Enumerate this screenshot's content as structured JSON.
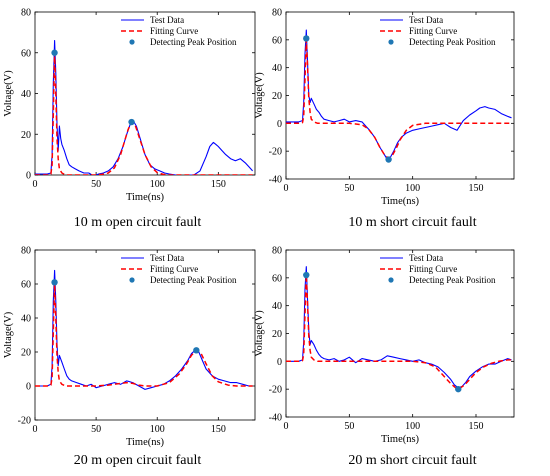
{
  "chart_data": [
    {
      "type": "line",
      "caption": "10 m open circuit fault",
      "xlabel": "Time(ns)",
      "ylabel": "Voltage(V)",
      "xlim": [
        0,
        180
      ],
      "ylim": [
        0,
        80
      ],
      "xticks": [
        0,
        50,
        100,
        150
      ],
      "yticks": [
        0,
        20,
        40,
        60,
        80
      ],
      "legend_position": "top-right",
      "series": [
        {
          "name": "Test Data",
          "style": "line",
          "color": "#0000ff",
          "x": [
            0,
            5,
            10,
            13,
            14,
            15,
            16,
            17,
            18,
            19,
            20,
            21,
            22,
            24,
            26,
            28,
            30,
            33,
            36,
            40,
            44,
            48,
            52,
            56,
            60,
            64,
            68,
            72,
            75,
            78,
            80,
            83,
            86,
            90,
            94,
            98,
            102,
            106,
            110,
            115,
            120,
            125,
            130,
            135,
            140,
            143,
            146,
            148,
            150,
            153,
            156,
            160,
            164,
            168,
            172,
            175,
            178
          ],
          "y": [
            0.5,
            0.5,
            0.5,
            1,
            10,
            45,
            66,
            50,
            25,
            12,
            24,
            18,
            15,
            12,
            8,
            5,
            4,
            3,
            2,
            1,
            1,
            -0.5,
            0.5,
            1,
            2,
            4,
            8,
            14,
            20,
            25,
            27,
            24,
            18,
            10,
            5,
            3,
            2,
            1,
            0.5,
            0,
            -1,
            0,
            0,
            2,
            9,
            14,
            16,
            15,
            14,
            12,
            10,
            8,
            7,
            8,
            6,
            4,
            2
          ]
        },
        {
          "name": "Fitting Curve",
          "style": "dashed",
          "color": "#ff0000",
          "x": [
            0,
            10,
            13,
            14,
            15,
            16,
            17,
            18,
            19,
            20,
            22,
            25,
            30,
            40,
            50,
            55,
            60,
            65,
            70,
            73,
            76,
            78,
            80,
            82,
            85,
            90,
            95,
            100,
            105,
            110,
            120,
            140,
            160,
            178
          ],
          "y": [
            0,
            0,
            0.5,
            5,
            30,
            60,
            40,
            18,
            8,
            3,
            1,
            0,
            0,
            0,
            0,
            0.3,
            1,
            3.5,
            10,
            16,
            22,
            25,
            26,
            24.5,
            19,
            10,
            4,
            1.2,
            0.3,
            0,
            0,
            0,
            0,
            0
          ]
        },
        {
          "name": "Detecting Peak Position",
          "style": "marker",
          "color": "#1f77b4",
          "x": [
            16,
            79
          ],
          "y": [
            60,
            26
          ]
        }
      ]
    },
    {
      "type": "line",
      "caption": "10 m short circuit fault",
      "xlabel": "Time(ns)",
      "ylabel": "Voltage(V)",
      "xlim": [
        0,
        180
      ],
      "ylim": [
        -40,
        80
      ],
      "xticks": [
        0,
        50,
        100,
        150
      ],
      "yticks": [
        -40,
        -20,
        0,
        20,
        40,
        60,
        80
      ],
      "legend_position": "top-right",
      "series": [
        {
          "name": "Test Data",
          "style": "line",
          "color": "#0000ff",
          "x": [
            0,
            5,
            10,
            13,
            14,
            15,
            16,
            17,
            18,
            19,
            20,
            22,
            24,
            26,
            28,
            30,
            34,
            38,
            42,
            46,
            50,
            55,
            60,
            63,
            66,
            70,
            74,
            78,
            80,
            82,
            85,
            88,
            91,
            95,
            100,
            105,
            110,
            115,
            120,
            125,
            130,
            135,
            140,
            145,
            150,
            153,
            157,
            160,
            165,
            170,
            175,
            178
          ],
          "y": [
            1,
            1,
            1,
            2,
            15,
            50,
            67,
            45,
            20,
            15,
            18,
            14,
            10,
            8,
            5,
            3,
            2,
            1,
            2,
            3,
            1,
            2,
            1,
            -2,
            -5,
            -10,
            -17,
            -23,
            -26,
            -25,
            -20,
            -14,
            -10,
            -7,
            -5,
            -4,
            -3,
            -2,
            -1,
            0,
            -3,
            -5,
            2,
            6,
            9,
            11,
            12,
            11,
            10,
            7,
            5,
            4
          ]
        },
        {
          "name": "Fitting Curve",
          "style": "dashed",
          "color": "#ff0000",
          "x": [
            0,
            10,
            13,
            14,
            15,
            16,
            17,
            18,
            19,
            20,
            22,
            25,
            30,
            40,
            50,
            60,
            65,
            70,
            74,
            78,
            81,
            84,
            87,
            90,
            95,
            100,
            110,
            130,
            150,
            178
          ],
          "y": [
            0,
            0,
            0.5,
            5,
            32,
            60,
            42,
            18,
            8,
            3,
            1,
            0,
            0,
            0,
            0,
            -1,
            -4,
            -10,
            -17,
            -23,
            -25,
            -23,
            -18,
            -12,
            -5,
            -1.5,
            0,
            0,
            0,
            0
          ]
        },
        {
          "name": "Detecting Peak Position",
          "style": "marker",
          "color": "#1f77b4",
          "x": [
            16,
            81
          ],
          "y": [
            61,
            -26
          ]
        }
      ]
    },
    {
      "type": "line",
      "caption": "20 m open circuit fault",
      "xlabel": "Time(ns)",
      "ylabel": "Voltage(V)",
      "xlim": [
        0,
        180
      ],
      "ylim": [
        -20,
        80
      ],
      "xticks": [
        0,
        50,
        100,
        150
      ],
      "yticks": [
        -20,
        0,
        20,
        40,
        60,
        80
      ],
      "legend_position": "top-right",
      "series": [
        {
          "name": "Test Data",
          "style": "line",
          "color": "#0000ff",
          "x": [
            0,
            5,
            10,
            13,
            14,
            15,
            16,
            17,
            18,
            19,
            20,
            22,
            24,
            26,
            28,
            30,
            34,
            38,
            42,
            46,
            50,
            55,
            60,
            65,
            70,
            75,
            80,
            85,
            90,
            95,
            100,
            105,
            110,
            115,
            120,
            125,
            128,
            131,
            134,
            137,
            140,
            145,
            150,
            155,
            160,
            165,
            170,
            175,
            178
          ],
          "y": [
            0,
            0,
            0,
            1,
            12,
            50,
            68,
            50,
            25,
            12,
            18,
            14,
            10,
            6,
            4,
            3,
            2,
            1,
            0,
            1,
            -1,
            0,
            1,
            2,
            1,
            3,
            2,
            0,
            -2,
            -1,
            0,
            1,
            3,
            6,
            10,
            15,
            19,
            21,
            20,
            15,
            10,
            6,
            4,
            3,
            2,
            2,
            1,
            0,
            0
          ]
        },
        {
          "name": "Fitting Curve",
          "style": "dashed",
          "color": "#ff0000",
          "x": [
            0,
            10,
            13,
            14,
            15,
            16,
            17,
            18,
            19,
            20,
            22,
            25,
            30,
            40,
            50,
            60,
            70,
            75,
            80,
            85,
            90,
            100,
            110,
            118,
            124,
            128,
            132,
            136,
            140,
            145,
            150,
            158,
            165,
            178
          ],
          "y": [
            0,
            0,
            0.5,
            5,
            32,
            60,
            40,
            18,
            8,
            3,
            1,
            0,
            0,
            0,
            0,
            0.5,
            1.5,
            2,
            1.5,
            0.5,
            0,
            0,
            2,
            7,
            13,
            18,
            21,
            19,
            13,
            6,
            2.5,
            0.5,
            0,
            0
          ]
        },
        {
          "name": "Detecting Peak Position",
          "style": "marker",
          "color": "#1f77b4",
          "x": [
            16,
            132
          ],
          "y": [
            61,
            21
          ]
        }
      ]
    },
    {
      "type": "line",
      "caption": "20 m short circuit fault",
      "xlabel": "Time(ns)",
      "ylabel": "Voltage(V)",
      "xlim": [
        0,
        180
      ],
      "ylim": [
        -40,
        80
      ],
      "xticks": [
        0,
        50,
        100,
        150
      ],
      "yticks": [
        -40,
        -20,
        0,
        20,
        40,
        60,
        80
      ],
      "legend_position": "top-right",
      "series": [
        {
          "name": "Test Data",
          "style": "line",
          "color": "#0000ff",
          "x": [
            0,
            5,
            10,
            13,
            14,
            15,
            16,
            17,
            18,
            19,
            20,
            22,
            24,
            26,
            28,
            30,
            34,
            38,
            42,
            46,
            50,
            55,
            60,
            65,
            70,
            75,
            80,
            85,
            90,
            95,
            100,
            105,
            110,
            115,
            120,
            125,
            130,
            133,
            136,
            139,
            142,
            145,
            150,
            155,
            160,
            165,
            170,
            175,
            178
          ],
          "y": [
            0,
            0,
            0,
            1,
            14,
            52,
            68,
            45,
            22,
            12,
            15,
            12,
            8,
            5,
            3,
            2,
            1,
            2,
            0,
            1,
            3,
            -1,
            2,
            1,
            0,
            1,
            4,
            3,
            2,
            1,
            0,
            1,
            -1,
            -2,
            -4,
            -8,
            -13,
            -17,
            -19,
            -18,
            -15,
            -11,
            -7,
            -4,
            -2,
            -2,
            0,
            2,
            1
          ]
        },
        {
          "name": "Fitting Curve",
          "style": "dashed",
          "color": "#ff0000",
          "x": [
            0,
            10,
            13,
            14,
            15,
            16,
            17,
            18,
            19,
            20,
            22,
            25,
            30,
            40,
            50,
            60,
            70,
            80,
            90,
            100,
            110,
            118,
            124,
            130,
            134,
            137,
            141,
            145,
            150,
            156,
            162,
            168,
            175,
            178
          ],
          "y": [
            0,
            0,
            0.5,
            5,
            34,
            62,
            42,
            18,
            8,
            3,
            1,
            0,
            0,
            0,
            0,
            0,
            0,
            0,
            0,
            0,
            -1,
            -4,
            -10,
            -16,
            -19,
            -19.5,
            -17,
            -13,
            -8,
            -4,
            -1.5,
            0,
            1,
            1
          ]
        },
        {
          "name": "Detecting Peak Position",
          "style": "marker",
          "color": "#1f77b4",
          "x": [
            16,
            136
          ],
          "y": [
            62,
            -20
          ]
        }
      ]
    }
  ]
}
